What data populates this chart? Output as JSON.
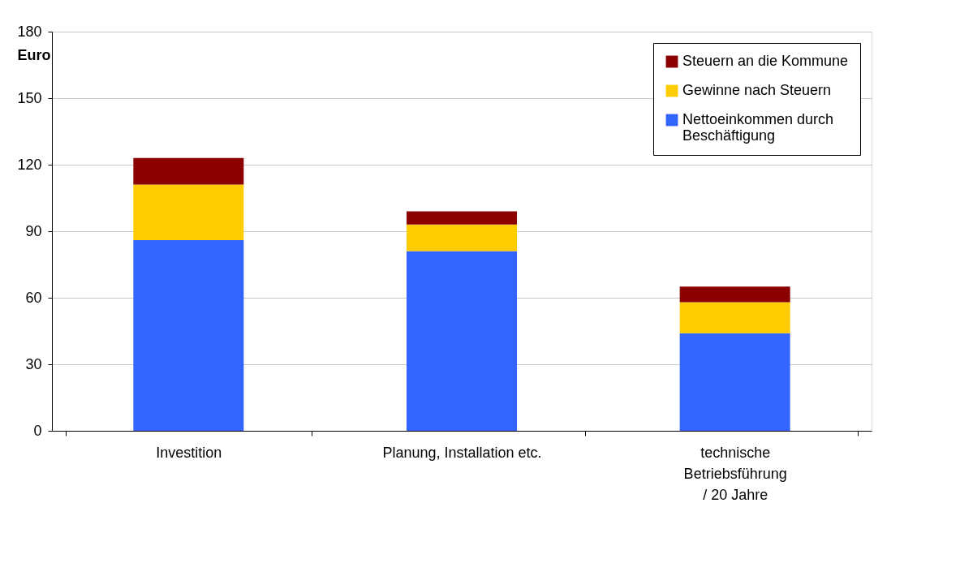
{
  "chart_data": {
    "type": "bar",
    "stacked": true,
    "ylabel": "Euro",
    "categories": [
      "Investition",
      "Planung, Installation etc.",
      "technische\nBetriebsführung\n/ 20 Jahre"
    ],
    "series": [
      {
        "name": "Nettoeinkommen durch\nBeschäftigung",
        "color": "#3366ff",
        "values": [
          86,
          81,
          44
        ]
      },
      {
        "name": "Gewinne nach Steuern",
        "color": "#ffcc00",
        "values": [
          25,
          12,
          14
        ]
      },
      {
        "name": "Steuern an die Kommune",
        "color": "#8b0000",
        "values": [
          12,
          6,
          7
        ]
      }
    ],
    "ylim": [
      0,
      180
    ],
    "yticks": [
      0,
      30,
      60,
      90,
      120,
      150,
      180
    ],
    "grid": "y",
    "legend": "top right"
  }
}
